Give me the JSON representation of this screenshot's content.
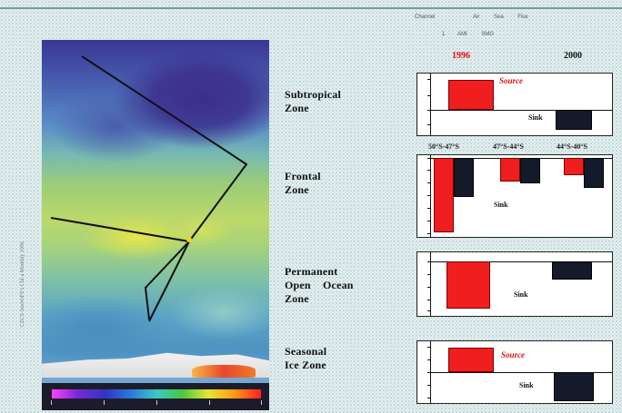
{
  "header": {
    "row1": [
      "Channel",
      "Air",
      "Sea",
      "Flux"
    ],
    "row2": [
      "1",
      "AMI",
      "SMG"
    ],
    "year_1996": "1996",
    "year_2000": "2000"
  },
  "side_caption": "CZCS-SeaWiFS’s Chl-a Monthly 1996",
  "zones": [
    {
      "id": "subtropical",
      "lines": [
        "Subtropical",
        "Zone"
      ]
    },
    {
      "id": "frontal",
      "lines": [
        "Frontal",
        "Zone"
      ]
    },
    {
      "id": "poz",
      "lines": [
        "Permanent",
        "Open Ocean",
        "Zone"
      ]
    },
    {
      "id": "seasonal_ice",
      "lines": [
        "Seasonal",
        "Ice Zone"
      ]
    }
  ],
  "frontal_latitudes": [
    "50°S-47°S",
    "47°S-44°S",
    "44°S-40°S"
  ],
  "labels": {
    "source": "Source",
    "sink": "Sink"
  },
  "colors": {
    "source_1996": "#f01e1e",
    "sink_2000": "#141a2a"
  },
  "chart_data": [
    {
      "type": "bar",
      "panel": "subtropical",
      "series": [
        {
          "name": "1996",
          "values": [
            6
          ]
        },
        {
          "name": "2000",
          "values": [
            -4
          ]
        }
      ],
      "annotations": [
        "Source",
        "Sink"
      ]
    },
    {
      "type": "bar",
      "panel": "frontal",
      "categories": [
        "50°S-47°S",
        "47°S-44°S",
        "44°S-40°S"
      ],
      "series": [
        {
          "name": "1996",
          "values": [
            -80,
            -25,
            -18
          ]
        },
        {
          "name": "2000",
          "values": [
            -42,
            -27,
            -32
          ]
        }
      ],
      "annotations": [
        "Sink"
      ],
      "ylim": [
        -85,
        5
      ]
    },
    {
      "type": "bar",
      "panel": "poz",
      "series": [
        {
          "name": "1996",
          "values": [
            -8
          ]
        },
        {
          "name": "2000",
          "values": [
            -3
          ]
        }
      ],
      "annotations": [
        "Sink"
      ]
    },
    {
      "type": "bar",
      "panel": "seasonal_ice",
      "series": [
        {
          "name": "1996",
          "values": [
            5
          ]
        },
        {
          "name": "2000",
          "values": [
            -6
          ]
        }
      ],
      "annotations": [
        "Source",
        "Sink"
      ]
    }
  ]
}
